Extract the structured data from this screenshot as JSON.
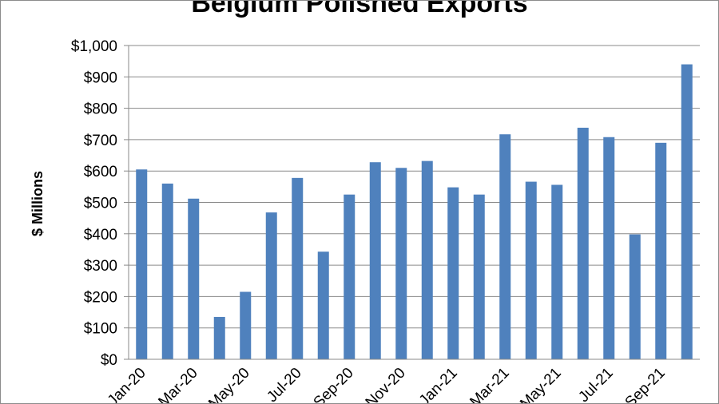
{
  "chart_data": {
    "type": "bar",
    "title": "Belgium Polished Exports",
    "xlabel": "",
    "ylabel": "$ Millions",
    "ylim": [
      0,
      1000
    ],
    "yticks": [
      "$0",
      "$100",
      "$200",
      "$300",
      "$400",
      "$500",
      "$600",
      "$700",
      "$800",
      "$900",
      "$1,000"
    ],
    "grid": true,
    "legend": "none",
    "color": "#4f81bd",
    "categories": [
      "Jan-20",
      "Feb-20",
      "Mar-20",
      "Apr-20",
      "May-20",
      "Jun-20",
      "Jul-20",
      "Aug-20",
      "Sep-20",
      "Oct-20",
      "Nov-20",
      "Dec-20",
      "Jan-21",
      "Feb-21",
      "Mar-21",
      "Apr-21",
      "May-21",
      "Jun-21",
      "Jul-21",
      "Aug-21",
      "Sep-21",
      "Oct-21"
    ],
    "tick_labels": [
      "Jan-20",
      "",
      "Mar-20",
      "",
      "May-20",
      "",
      "Jul-20",
      "",
      "Sep-20",
      "",
      "Nov-20",
      "",
      "Jan-21",
      "",
      "Mar-21",
      "",
      "May-21",
      "",
      "Jul-21",
      "",
      "Sep-21",
      ""
    ],
    "values": [
      605,
      560,
      512,
      135,
      215,
      468,
      578,
      343,
      525,
      628,
      610,
      632,
      548,
      525,
      717,
      566,
      556,
      738,
      708,
      398,
      690,
      940
    ]
  }
}
